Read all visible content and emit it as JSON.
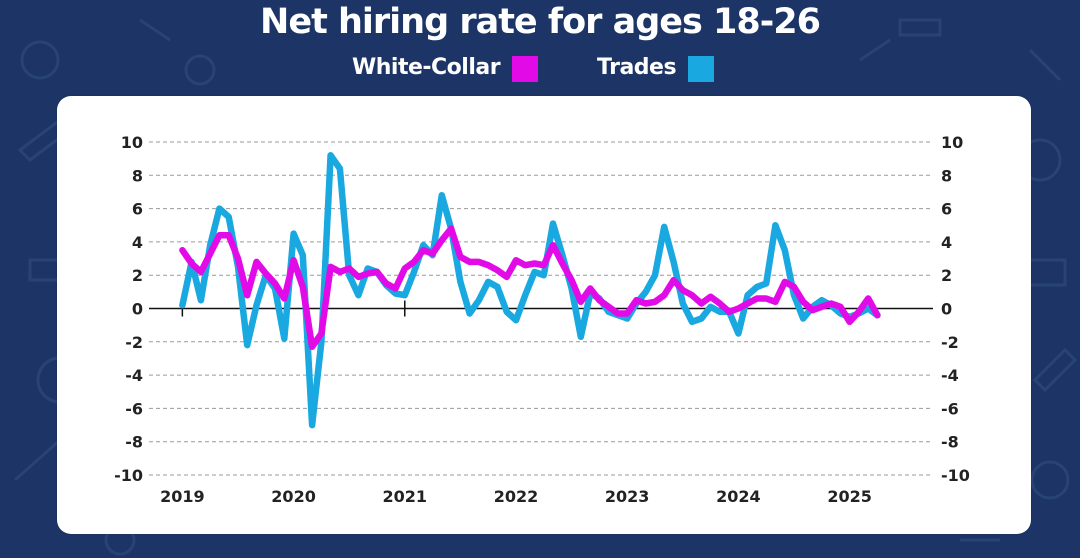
{
  "title": "Net hiring rate for ages 18-26",
  "legend": [
    {
      "label": "White-Collar",
      "color": "#e20be8"
    },
    {
      "label": "Trades",
      "color": "#19a8e0"
    }
  ],
  "colors": {
    "background": "#1c3566",
    "card": "#ffffff",
    "grid": "#9a9a9a",
    "axis": "#111111"
  },
  "chart_data": {
    "type": "line",
    "title": "Net hiring rate for ages 18-26",
    "xlabel": "",
    "ylabel": "",
    "ylim": [
      -10,
      10
    ],
    "xlim": [
      2018.7,
      2025.75
    ],
    "yticks": [
      10,
      8,
      6,
      4,
      2,
      0,
      -2,
      -4,
      -6,
      -8,
      -10
    ],
    "yticks_right": true,
    "xticks": [
      "2019",
      "2020",
      "2021",
      "2022",
      "2023",
      "2024",
      "2025"
    ],
    "grid": "horizontal dashed",
    "legend_position": "top-center",
    "series": [
      {
        "name": "Trades",
        "color": "#19a8e0",
        "x": [
          2019.0,
          2019.083,
          2019.167,
          2019.25,
          2019.333,
          2019.417,
          2019.5,
          2019.583,
          2019.667,
          2019.75,
          2019.833,
          2019.917,
          2020.0,
          2020.083,
          2020.167,
          2020.25,
          2020.333,
          2020.417,
          2020.5,
          2020.583,
          2020.667,
          2020.75,
          2020.833,
          2020.917,
          2021.0,
          2021.083,
          2021.167,
          2021.25,
          2021.333,
          2021.417,
          2021.5,
          2021.583,
          2021.667,
          2021.75,
          2021.833,
          2021.917,
          2022.0,
          2022.083,
          2022.167,
          2022.25,
          2022.333,
          2022.417,
          2022.5,
          2022.583,
          2022.667,
          2022.75,
          2022.833,
          2022.917,
          2023.0,
          2023.083,
          2023.167,
          2023.25,
          2023.333,
          2023.417,
          2023.5,
          2023.583,
          2023.667,
          2023.75,
          2023.833,
          2023.917,
          2024.0,
          2024.083,
          2024.167,
          2024.25,
          2024.333,
          2024.417,
          2024.5,
          2024.583,
          2024.667,
          2024.75,
          2024.833,
          2024.917,
          2025.0,
          2025.083,
          2025.167,
          2025.25
        ],
        "values": [
          0.2,
          2.8,
          0.5,
          3.8,
          6.0,
          5.5,
          2.5,
          -2.2,
          0.2,
          2.0,
          1.2,
          -1.8,
          4.5,
          3.2,
          -7.0,
          -2.0,
          9.2,
          8.4,
          2.0,
          0.8,
          2.4,
          2.2,
          1.4,
          0.9,
          0.8,
          2.2,
          3.8,
          3.2,
          6.8,
          4.8,
          1.6,
          -0.3,
          0.5,
          1.6,
          1.3,
          -0.2,
          -0.7,
          0.8,
          2.2,
          2.0,
          5.1,
          3.2,
          1.2,
          -1.7,
          0.9,
          0.6,
          -0.2,
          -0.4,
          -0.6,
          0.3,
          1.0,
          2.0,
          4.9,
          2.8,
          0.3,
          -0.8,
          -0.6,
          0.1,
          -0.2,
          -0.2,
          -1.5,
          0.8,
          1.3,
          1.5,
          5.0,
          3.5,
          0.8,
          -0.6,
          0.1,
          0.5,
          0.2,
          -0.3,
          -0.5,
          -0.3,
          0.0,
          -0.4
        ]
      },
      {
        "name": "White-Collar",
        "color": "#e20be8",
        "x": [
          2019.0,
          2019.083,
          2019.167,
          2019.25,
          2019.333,
          2019.417,
          2019.5,
          2019.583,
          2019.667,
          2019.75,
          2019.833,
          2019.917,
          2020.0,
          2020.083,
          2020.167,
          2020.25,
          2020.333,
          2020.417,
          2020.5,
          2020.583,
          2020.667,
          2020.75,
          2020.833,
          2020.917,
          2021.0,
          2021.083,
          2021.167,
          2021.25,
          2021.333,
          2021.417,
          2021.5,
          2021.583,
          2021.667,
          2021.75,
          2021.833,
          2021.917,
          2022.0,
          2022.083,
          2022.167,
          2022.25,
          2022.333,
          2022.417,
          2022.5,
          2022.583,
          2022.667,
          2022.75,
          2022.833,
          2022.917,
          2023.0,
          2023.083,
          2023.167,
          2023.25,
          2023.333,
          2023.417,
          2023.5,
          2023.583,
          2023.667,
          2023.75,
          2023.833,
          2023.917,
          2024.0,
          2024.083,
          2024.167,
          2024.25,
          2024.333,
          2024.417,
          2024.5,
          2024.583,
          2024.667,
          2024.75,
          2024.833,
          2024.917,
          2025.0,
          2025.083,
          2025.167,
          2025.25
        ],
        "values": [
          3.5,
          2.7,
          2.2,
          3.3,
          4.4,
          4.4,
          3.0,
          0.8,
          2.8,
          2.1,
          1.5,
          0.6,
          2.9,
          1.3,
          -2.3,
          -1.5,
          2.5,
          2.2,
          2.4,
          1.9,
          2.1,
          2.2,
          1.5,
          1.2,
          2.4,
          2.8,
          3.5,
          3.3,
          4.1,
          4.8,
          3.1,
          2.8,
          2.8,
          2.6,
          2.3,
          1.9,
          2.9,
          2.6,
          2.7,
          2.6,
          3.8,
          2.7,
          1.7,
          0.4,
          1.2,
          0.5,
          0.1,
          -0.3,
          -0.3,
          0.5,
          0.3,
          0.4,
          0.8,
          1.7,
          1.1,
          0.8,
          0.3,
          0.7,
          0.3,
          -0.2,
          0.0,
          0.3,
          0.6,
          0.6,
          0.4,
          1.6,
          1.3,
          0.4,
          -0.1,
          0.1,
          0.3,
          0.1,
          -0.8,
          -0.2,
          0.6,
          -0.4
        ]
      }
    ]
  }
}
